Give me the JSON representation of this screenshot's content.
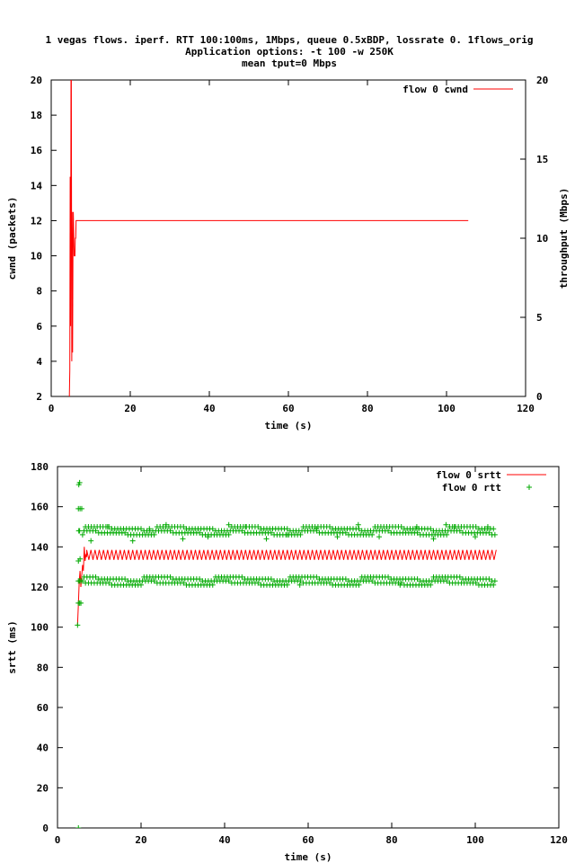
{
  "figure": {
    "title_lines": [
      "1 vegas flows. iperf. RTT 100:100ms, 1Mbps, queue 0.5xBDP, lossrate 0. 1flows_orig",
      "Application options: -t 100 -w 250K",
      "mean tput=0 Mbps"
    ]
  },
  "chart_data": [
    {
      "type": "line",
      "title": "",
      "xlabel": "time (s)",
      "ylabel": "cwnd (packets)",
      "y2label": "throughput (Mbps)",
      "xlim": [
        0,
        120
      ],
      "ylim": [
        2,
        20
      ],
      "y2lim": [
        0,
        20
      ],
      "xticks": [
        0,
        20,
        40,
        60,
        80,
        100,
        120
      ],
      "yticks": [
        2,
        4,
        6,
        8,
        10,
        12,
        14,
        16,
        18,
        20
      ],
      "y2ticks": [
        0,
        5,
        10,
        15,
        20
      ],
      "grid": false,
      "legend": "top-right",
      "series": [
        {
          "name": "flow 0 cwnd",
          "color": "#ff0000",
          "style": "line",
          "points": [
            [
              4.6,
              2
            ],
            [
              4.7,
              3.5
            ],
            [
              4.8,
              14.5
            ],
            [
              4.9,
              6
            ],
            [
              5.0,
              20
            ],
            [
              5.1,
              20
            ],
            [
              5.2,
              4
            ],
            [
              5.3,
              12.5
            ],
            [
              5.4,
              4.5
            ],
            [
              5.5,
              10
            ],
            [
              5.6,
              12.5
            ],
            [
              5.8,
              10
            ],
            [
              6.0,
              10
            ],
            [
              6.1,
              11
            ],
            [
              6.2,
              11
            ],
            [
              6.3,
              12
            ],
            [
              105.5,
              12
            ]
          ]
        }
      ]
    },
    {
      "type": "line",
      "title": "",
      "xlabel": "time (s)",
      "ylabel": "srtt (ms)",
      "xlim": [
        0,
        120
      ],
      "ylim": [
        0,
        180
      ],
      "xticks": [
        0,
        20,
        40,
        60,
        80,
        100,
        120
      ],
      "yticks": [
        0,
        20,
        40,
        60,
        80,
        100,
        120,
        140,
        160,
        180
      ],
      "grid": false,
      "legend": "top-right",
      "series": [
        {
          "name": "flow 0 srtt",
          "color": "#ff0000",
          "style": "line",
          "start_points": [
            [
              4.8,
              101
            ],
            [
              5.0,
              112
            ],
            [
              5.2,
              123
            ],
            [
              5.4,
              128
            ],
            [
              5.6,
              120
            ],
            [
              5.8,
              126
            ],
            [
              6.0,
              131
            ],
            [
              6.2,
              128
            ],
            [
              6.4,
              140
            ],
            [
              6.6,
              133
            ],
            [
              6.8,
              136
            ],
            [
              7.0,
              135
            ]
          ],
          "steady_t": [
            7,
            105
          ],
          "steady_mean": 136,
          "steady_amplitude": 2.5
        },
        {
          "name": "flow 0 rtt",
          "color": "#00aa00",
          "style": "marker-plus",
          "early_points": [
            [
              5.0,
              0
            ],
            [
              4.8,
              101
            ],
            [
              5.0,
              112
            ],
            [
              5.3,
              112
            ],
            [
              5.6,
              112
            ],
            [
              5.0,
              123
            ],
            [
              5.3,
              123
            ],
            [
              5.6,
              123
            ],
            [
              5.0,
              133
            ],
            [
              5.4,
              134
            ],
            [
              5.1,
              148
            ],
            [
              5.3,
              148
            ],
            [
              5.0,
              159
            ],
            [
              5.4,
              159
            ],
            [
              5.8,
              159
            ],
            [
              5.1,
              171
            ],
            [
              5.3,
              172
            ]
          ],
          "bands_t": [
            6,
            105
          ],
          "bands": [
            123,
            148
          ],
          "band_spread": 2,
          "outliers": [
            [
              8,
              143
            ],
            [
              12,
              150
            ],
            [
              18,
              143
            ],
            [
              22,
              149
            ],
            [
              26,
              151
            ],
            [
              30,
              144
            ],
            [
              36,
              145
            ],
            [
              41,
              151
            ],
            [
              45,
              150
            ],
            [
              50,
              144
            ],
            [
              55,
              146
            ],
            [
              58,
              121
            ],
            [
              62,
              149
            ],
            [
              67,
              145
            ],
            [
              72,
              151
            ],
            [
              77,
              145
            ],
            [
              82,
              121
            ],
            [
              86,
              150
            ],
            [
              90,
              144
            ],
            [
              93,
              151
            ],
            [
              95,
              150
            ],
            [
              100,
              145
            ],
            [
              103,
              150
            ]
          ]
        }
      ]
    }
  ]
}
